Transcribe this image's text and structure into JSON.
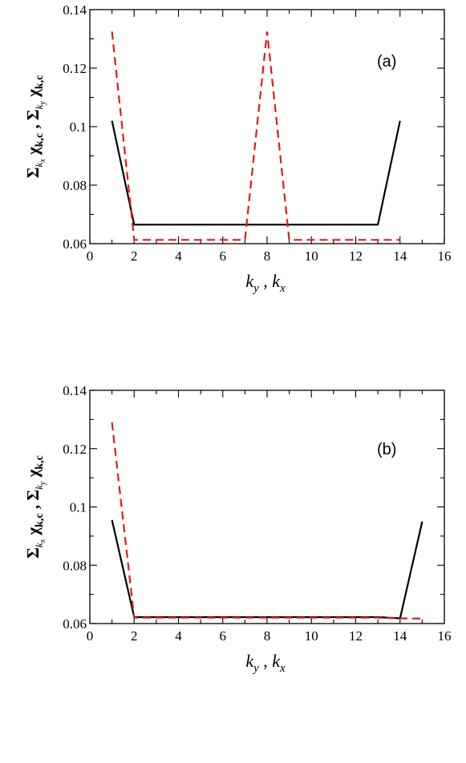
{
  "chart_data": [
    {
      "type": "line",
      "panel_label": "(a)",
      "xlabel": "k_y , k_x",
      "ylabel": "Σ_{k_x} χ_{k,c} , Σ_{k_y} χ_{k,c}",
      "xlim": [
        0,
        16
      ],
      "ylim": [
        0.06,
        0.14
      ],
      "xticks": [
        "0",
        "2",
        "4",
        "6",
        "8",
        "10",
        "12",
        "14",
        "16"
      ],
      "yticks": [
        "0.06",
        "0.08",
        "0.1",
        "0.12",
        "0.14"
      ],
      "grid": false,
      "series": [
        {
          "color": "#000000",
          "dash": "solid",
          "x": [
            1,
            2,
            3,
            4,
            5,
            6,
            7,
            8,
            9,
            10,
            11,
            12,
            13,
            14
          ],
          "y": [
            0.102,
            0.0665,
            0.0665,
            0.0665,
            0.0665,
            0.0665,
            0.0665,
            0.0665,
            0.0665,
            0.0665,
            0.0665,
            0.0665,
            0.0665,
            0.102
          ]
        },
        {
          "color": "#e41a1c",
          "dash": "dashed",
          "x": [
            1,
            2,
            3,
            4,
            5,
            6,
            7,
            8,
            9,
            10,
            11,
            12,
            13,
            14
          ],
          "y": [
            0.1325,
            0.0613,
            0.0613,
            0.0613,
            0.0613,
            0.0613,
            0.0613,
            0.1325,
            0.0613,
            0.0613,
            0.0613,
            0.0613,
            0.0613,
            0.0613
          ]
        }
      ]
    },
    {
      "type": "line",
      "panel_label": "(b)",
      "xlabel": "k_y , k_x",
      "ylabel": "Σ_{k_x} χ_{k,c} , Σ_{k_y} χ_{k,c}",
      "xlim": [
        0,
        16
      ],
      "ylim": [
        0.06,
        0.14
      ],
      "xticks": [
        "0",
        "2",
        "4",
        "6",
        "8",
        "10",
        "12",
        "14",
        "16"
      ],
      "yticks": [
        "0.06",
        "0.08",
        "0.1",
        "0.12",
        "0.14"
      ],
      "grid": false,
      "series": [
        {
          "color": "#000000",
          "dash": "solid",
          "x": [
            1,
            2,
            3,
            4,
            5,
            6,
            7,
            8,
            9,
            10,
            11,
            12,
            13,
            14,
            15
          ],
          "y": [
            0.0955,
            0.0622,
            0.0622,
            0.0622,
            0.0622,
            0.0622,
            0.0622,
            0.0622,
            0.0622,
            0.0622,
            0.0622,
            0.0622,
            0.0622,
            0.0618,
            0.095
          ]
        },
        {
          "color": "#e41a1c",
          "dash": "dashed",
          "x": [
            1,
            2,
            3,
            4,
            5,
            6,
            7,
            8,
            9,
            10,
            11,
            12,
            13,
            14,
            15
          ],
          "y": [
            0.129,
            0.062,
            0.062,
            0.062,
            0.062,
            0.062,
            0.062,
            0.062,
            0.062,
            0.062,
            0.062,
            0.062,
            0.062,
            0.0618,
            0.0617
          ]
        }
      ]
    }
  ]
}
